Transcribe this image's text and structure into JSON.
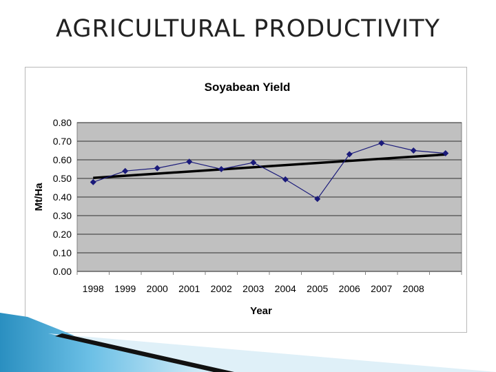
{
  "slide": {
    "title": "AGRICULTURAL PRODUCTIVITY"
  },
  "chart_data": {
    "type": "line",
    "title": "Soyabean Yield",
    "xlabel": "Year",
    "ylabel": "Mt/Ha",
    "categories": [
      "1998",
      "1999",
      "2000",
      "2001",
      "2002",
      "2003",
      "2004",
      "2005",
      "2006",
      "2007",
      "2008",
      ""
    ],
    "series": [
      {
        "values": [
          0.48,
          0.54,
          0.555,
          0.59,
          0.55,
          0.585,
          0.495,
          0.39,
          0.63,
          0.69,
          0.65,
          0.635
        ],
        "color": "#1a1a7a",
        "marker": "diamond"
      }
    ],
    "trendline": {
      "type": "linear",
      "color": "#000000"
    },
    "ylim": [
      0,
      0.8
    ],
    "yticks": [
      "0.00",
      "0.10",
      "0.20",
      "0.30",
      "0.40",
      "0.50",
      "0.60",
      "0.70",
      "0.80"
    ],
    "plot_background": "#c0c0c0",
    "grid": true,
    "legend": "none"
  }
}
